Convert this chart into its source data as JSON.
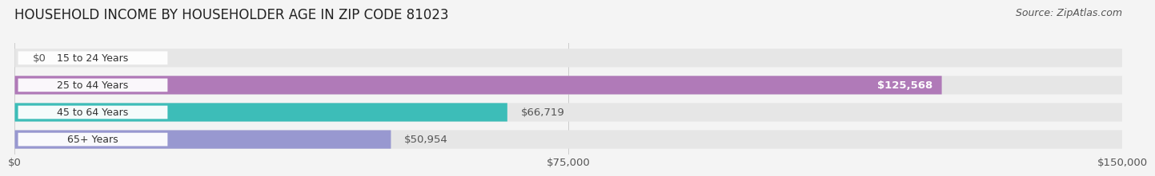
{
  "title": "HOUSEHOLD INCOME BY HOUSEHOLDER AGE IN ZIP CODE 81023",
  "source": "Source: ZipAtlas.com",
  "categories": [
    "15 to 24 Years",
    "25 to 44 Years",
    "45 to 64 Years",
    "65+ Years"
  ],
  "values": [
    0,
    125568,
    66719,
    50954
  ],
  "bar_colors": [
    "#a8c8e8",
    "#b07ab8",
    "#3dbdb8",
    "#9898d0"
  ],
  "bar_labels": [
    "$0",
    "$125,568",
    "$66,719",
    "$50,954"
  ],
  "label_inside": [
    false,
    true,
    false,
    false
  ],
  "x_max": 150000,
  "x_ticks": [
    0,
    75000,
    150000
  ],
  "x_tick_labels": [
    "$0",
    "$75,000",
    "$150,000"
  ],
  "background_color": "#f4f4f4",
  "bar_bg_color": "#e6e6e6",
  "title_fontsize": 12,
  "label_fontsize": 9.5,
  "source_fontsize": 9
}
